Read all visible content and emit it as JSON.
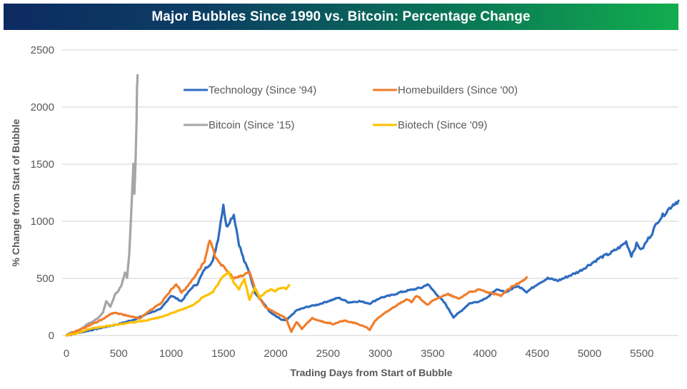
{
  "chart_data": {
    "type": "line",
    "title": "Major Bubbles Since 1990 vs. Bitcoin: Percentage Change",
    "xlabel": "Trading Days from Start of Bubble",
    "ylabel": "% Change from Start of Bubble",
    "xlim": [
      0,
      5860
    ],
    "ylim": [
      0,
      2500
    ],
    "xticks": [
      0,
      500,
      1000,
      1500,
      2000,
      2500,
      3000,
      3500,
      4000,
      4500,
      5000,
      5500
    ],
    "yticks": [
      0,
      500,
      1000,
      1500,
      2000,
      2500
    ],
    "grid": "horizontal",
    "legend_position": "top-center",
    "series": [
      {
        "name": "Technology (Since '94)",
        "color": "#2e6cc0",
        "x": [
          0,
          150,
          300,
          500,
          650,
          800,
          900,
          1000,
          1100,
          1200,
          1250,
          1320,
          1400,
          1450,
          1500,
          1530,
          1560,
          1600,
          1650,
          1700,
          1750,
          1800,
          1870,
          1950,
          2050,
          2100,
          2200,
          2300,
          2400,
          2500,
          2600,
          2700,
          2800,
          2900,
          3000,
          3100,
          3200,
          3300,
          3400,
          3450,
          3500,
          3550,
          3620,
          3700,
          3780,
          3850,
          3950,
          4050,
          4100,
          4200,
          4300,
          4350,
          4400,
          4500,
          4600,
          4700,
          4800,
          4900,
          5000,
          5100,
          5200,
          5300,
          5350,
          5400,
          5450,
          5500,
          5550,
          5600,
          5650,
          5700,
          5750,
          5800,
          5850
        ],
        "values": [
          0,
          30,
          60,
          100,
          140,
          200,
          230,
          350,
          300,
          420,
          450,
          580,
          650,
          850,
          1150,
          950,
          1000,
          1060,
          800,
          650,
          550,
          380,
          300,
          200,
          140,
          130,
          220,
          250,
          270,
          300,
          330,
          290,
          300,
          280,
          330,
          350,
          380,
          400,
          420,
          450,
          400,
          350,
          280,
          160,
          220,
          280,
          300,
          350,
          400,
          380,
          430,
          420,
          380,
          450,
          500,
          480,
          520,
          560,
          620,
          680,
          720,
          780,
          820,
          700,
          800,
          750,
          830,
          900,
          1000,
          1050,
          1100,
          1150,
          1180
        ]
      },
      {
        "name": "Homebuilders (Since '00)",
        "color": "#f07d2a",
        "x": [
          0,
          150,
          300,
          450,
          550,
          700,
          800,
          900,
          1000,
          1050,
          1100,
          1150,
          1250,
          1320,
          1370,
          1420,
          1480,
          1550,
          1600,
          1680,
          1750,
          1800,
          1850,
          1900,
          2000,
          2100,
          2150,
          2200,
          2250,
          2350,
          2450,
          2550,
          2650,
          2750,
          2850,
          2900,
          2950,
          3050,
          3150,
          3250,
          3300,
          3350,
          3450,
          3550,
          3650,
          3750,
          3850,
          3950,
          4050,
          4150,
          4250,
          4350,
          4400
        ],
        "values": [
          0,
          60,
          120,
          200,
          180,
          150,
          220,
          280,
          400,
          450,
          380,
          420,
          550,
          650,
          830,
          700,
          620,
          550,
          500,
          520,
          560,
          420,
          320,
          250,
          200,
          150,
          30,
          120,
          60,
          150,
          120,
          100,
          130,
          110,
          80,
          50,
          130,
          200,
          260,
          320,
          290,
          350,
          270,
          330,
          360,
          320,
          380,
          400,
          370,
          350,
          420,
          470,
          510
        ]
      },
      {
        "name": "Bitcoin (Since '15)",
        "color": "#a5a5a5",
        "x": [
          0,
          50,
          100,
          150,
          200,
          250,
          300,
          350,
          380,
          420,
          460,
          500,
          530,
          560,
          580,
          600,
          615,
          630,
          640,
          650,
          660,
          670,
          675,
          680
        ],
        "values": [
          0,
          30,
          20,
          60,
          100,
          120,
          150,
          200,
          300,
          250,
          350,
          400,
          450,
          550,
          500,
          700,
          1000,
          1300,
          1480,
          1250,
          1500,
          1900,
          2200,
          2280
        ]
      },
      {
        "name": "Biotech (Since '09)",
        "color": "#ffc000",
        "x": [
          0,
          100,
          200,
          300,
          450,
          600,
          750,
          900,
          1050,
          1200,
          1300,
          1400,
          1500,
          1550,
          1600,
          1650,
          1700,
          1750,
          1800,
          1850,
          1900,
          1950,
          2000,
          2050,
          2100,
          2130
        ],
        "values": [
          0,
          20,
          50,
          70,
          90,
          110,
          130,
          160,
          210,
          260,
          330,
          380,
          520,
          560,
          460,
          400,
          500,
          310,
          420,
          330,
          380,
          400,
          390,
          420,
          410,
          440
        ]
      }
    ]
  }
}
